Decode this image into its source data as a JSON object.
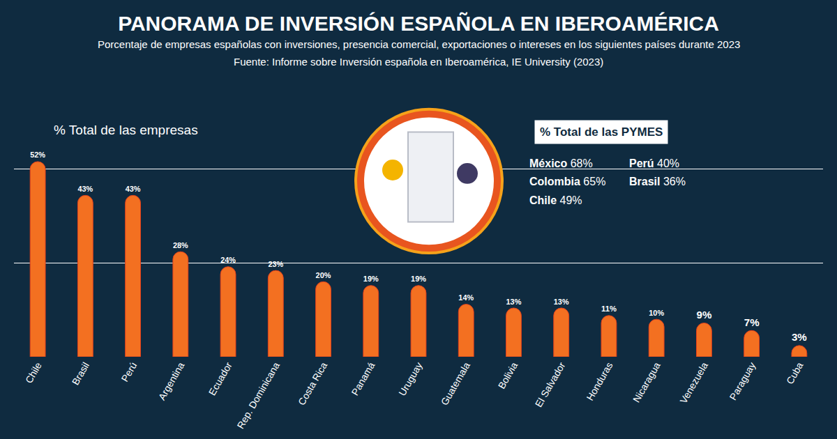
{
  "chart_data": {
    "type": "bar",
    "title": "PANORAMA DE INVERSIÓN ESPAÑOLA EN IBEROAMÉRICA",
    "subtitle": "Porcentaje de empresas españolas con inversiones, presencia comercial, exportaciones o intereses en los siguientes países durante 2023",
    "source": "Fuente: Informe sobre Inversión española en Iberoamérica, IE University (2023)",
    "ylabel": "% Total de las empresas",
    "categories": [
      "Chile",
      "Brasil",
      "Perú",
      "Argentina",
      "Ecuador",
      "Rep. Dominicana",
      "Costa Rica",
      "Panamá",
      "Uruguay",
      "Guatemala",
      "Bolivia",
      "El Salvador",
      "Honduras",
      "Nicaragua",
      "Venezuela",
      "Paraguay",
      "Cuba"
    ],
    "values": [
      52,
      43,
      43,
      28,
      24,
      23,
      20,
      19,
      19,
      14,
      13,
      13,
      11,
      10,
      9,
      7,
      3
    ],
    "value_labels": [
      "52%",
      "43%",
      "43%",
      "28%",
      "24%",
      "23%",
      "20%",
      "19%",
      "19%",
      "14%",
      "13%",
      "13%",
      "11%",
      "10%",
      "9%",
      "7%",
      "3%"
    ],
    "color": "#f37021",
    "ylim": [
      0,
      75
    ],
    "yticks": [
      0,
      25,
      50,
      75
    ],
    "grid": true,
    "data_labels": true,
    "tick_labels": "x",
    "inset": {
      "title": "% Total de las PYMES",
      "items": [
        {
          "label": "México",
          "value_label": "68%"
        },
        {
          "label": "Colombia",
          "value_label": "65%"
        },
        {
          "label": "Chile",
          "value_label": "49%"
        },
        {
          "label": "Perú",
          "value_label": "40%"
        },
        {
          "label": "Brasil",
          "value_label": "36%"
        }
      ]
    }
  }
}
